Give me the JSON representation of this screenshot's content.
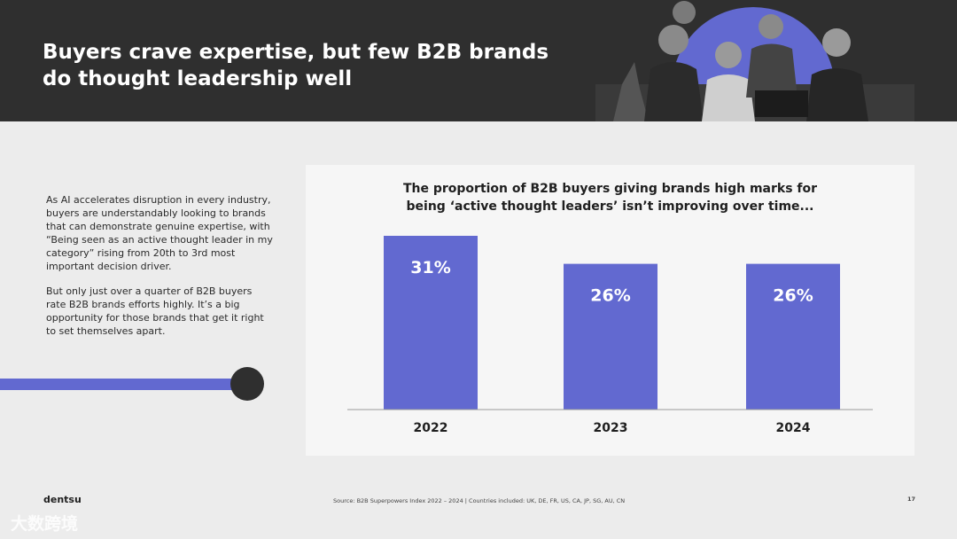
{
  "header": {
    "title_line1": "Buyers crave expertise, but few B2B brands",
    "title_line2": "do thought leadership well"
  },
  "intro": {
    "para1": "As AI accelerates disruption in every industry, buyers are understandably looking to brands that can demonstrate genuine expertise, with “Being seen as an active thought leader in my category” rising from 20th to 3rd most important decision driver.",
    "para2": "But only just over a quarter of B2B buyers rate B2B brands efforts highly. It’s a big opportunity for those brands that get it right to set themselves apart."
  },
  "chart_data": {
    "type": "bar",
    "title_line1": "The proportion of B2B buyers giving brands high marks for",
    "title_line2": "being ‘active thought leaders’ isn’t improving over time...",
    "categories": [
      "2022",
      "2023",
      "2024"
    ],
    "values": [
      31,
      26,
      26
    ],
    "data_labels": [
      "31%",
      "26%",
      "26%"
    ],
    "ylim": [
      0,
      31
    ],
    "bar_color": "#6269d0",
    "grid": false,
    "legend": "none"
  },
  "footer": {
    "logo": "dentsu",
    "source": "Source: B2B Superpowers Index 2022 – 2024   |   Countries included: UK, DE, FR, US, CA, JP, SG, AU, CN",
    "page": "17"
  },
  "watermark": "大数跨境",
  "colors": {
    "header_bg": "#2f2f2f",
    "accent": "#6269d0",
    "page_bg": "#ececec",
    "panel_bg": "#f6f6f6"
  }
}
